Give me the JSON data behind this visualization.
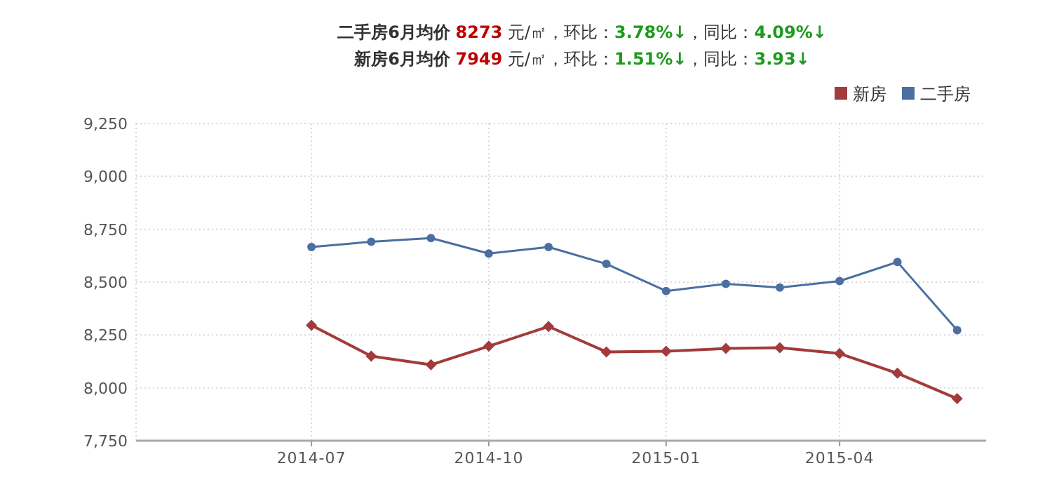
{
  "chart_data": {
    "type": "line",
    "title": "**二手房6月均价** **8273** 元/㎡，环比：**3.78%↓**，同比：**4.09%↓**",
    "subtitle": "**新房6月均价** **7949** 元/㎡，环比：**1.51%↓**，同比：**3.93↓**",
    "x": [
      "2014-07",
      "2014-08",
      "2014-09",
      "2014-10",
      "2014-11",
      "2014-12",
      "2015-01",
      "2015-02",
      "2015-03",
      "2015-04",
      "2015-05",
      "2015-06"
    ],
    "series": [
      {
        "name": "新房",
        "color": "#a23b3b",
        "marker": "diamond",
        "values": [
          8296,
          8150,
          8109,
          8197,
          8290,
          8170,
          8173,
          8186,
          8190,
          8162,
          8069,
          7949
        ]
      },
      {
        "name": "二手房",
        "color": "#4a6fa0",
        "marker": "circle",
        "values": [
          8666,
          8691,
          8708,
          8635,
          8666,
          8586,
          8458,
          8492,
          8474,
          8505,
          8595,
          8273
        ]
      }
    ],
    "xlim": [
      "2014-04-01",
      "2015-06-16"
    ],
    "xticks": [
      "2014-07",
      "2014-10",
      "2015-01",
      "2015-04"
    ],
    "ylim": [
      7750,
      9250
    ],
    "yticks": [
      {
        "value": 7750,
        "label": "7,750"
      },
      {
        "value": 8000,
        "label": "8,000"
      },
      {
        "value": 8250,
        "label": "8,250"
      },
      {
        "value": 8500,
        "label": "8,500"
      },
      {
        "value": 8750,
        "label": "8,750"
      },
      {
        "value": 9000,
        "label": "9,000"
      },
      {
        "value": 9250,
        "label": "9,250"
      }
    ],
    "grid": true,
    "legend": "top right",
    "line_style": "solid"
  }
}
